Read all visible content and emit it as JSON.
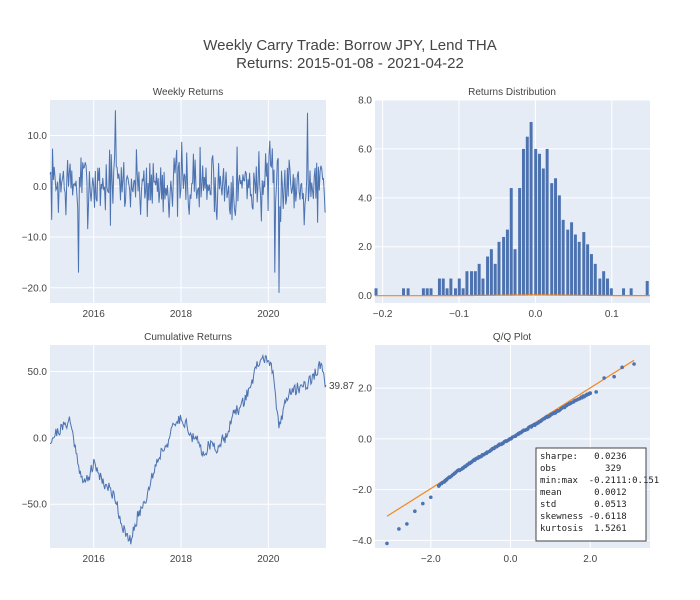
{
  "figure": {
    "title_line1": "Weekly Carry Trade: Borrow JPY, Lend THA",
    "title_line2": "Returns: 2015-01-08 - 2021-04-22",
    "colors": {
      "plot_bg": "#e5ecf6",
      "line": "#4c72b0",
      "bar": "#4c72b0",
      "fit": "#f58518",
      "grid": "#ffffff"
    }
  },
  "chart_data": [
    {
      "id": "weekly",
      "type": "line",
      "title": "Weekly Returns",
      "xlabel": "",
      "ylabel": "",
      "xlim": [
        2015.0,
        2021.32
      ],
      "ylim": [
        -23,
        17
      ],
      "xticks": [
        2016,
        2018,
        2020
      ],
      "xtick_labels": [
        "2016",
        "2018",
        "2020"
      ],
      "yticks": [
        10,
        0,
        -10,
        -20
      ],
      "ytick_labels": [
        "10.0",
        "0.0",
        "−10.0",
        "−20.0"
      ],
      "grid": true,
      "series_note": "329 weekly observations from 2015-01-08 to 2021-04-22; extremes: +15 (2016.5), +14.5 (2020.9), −17 (2015.65), −21 (2020.25)",
      "keypoints": [
        [
          2015.0,
          0
        ],
        [
          2015.65,
          -17
        ],
        [
          2016.5,
          15
        ],
        [
          2020.15,
          -17
        ],
        [
          2020.25,
          -21
        ],
        [
          2020.9,
          14.5
        ],
        [
          2021.3,
          0
        ]
      ]
    },
    {
      "id": "dist",
      "type": "bar",
      "title": "Returns Distribution",
      "xlabel": "",
      "ylabel": "",
      "xlim": [
        -0.21,
        0.15
      ],
      "ylim": [
        -0.3,
        8.0
      ],
      "xticks": [
        -0.2,
        -0.1,
        0,
        0.1
      ],
      "xtick_labels": [
        "−0.2",
        "−0.1",
        "0.0",
        "0.1"
      ],
      "yticks": [
        0,
        2,
        4,
        6,
        8
      ],
      "ytick_labels": [
        "0.0",
        "2.0",
        "4.0",
        "6.0",
        "8.0"
      ],
      "grid": true,
      "bin_width": 0.0052,
      "bins": [
        [
          -0.208,
          0.3
        ],
        [
          -0.172,
          0.3
        ],
        [
          -0.166,
          0.3
        ],
        [
          -0.146,
          0.3
        ],
        [
          -0.141,
          0.3
        ],
        [
          -0.136,
          0.3
        ],
        [
          -0.125,
          0.7
        ],
        [
          -0.12,
          0.7
        ],
        [
          -0.115,
          0.3
        ],
        [
          -0.11,
          0.7
        ],
        [
          -0.104,
          0.3
        ],
        [
          -0.099,
          0.7
        ],
        [
          -0.094,
          0.3
        ],
        [
          -0.089,
          1.0
        ],
        [
          -0.083,
          1.0
        ],
        [
          -0.078,
          1.0
        ],
        [
          -0.073,
          1.3
        ],
        [
          -0.068,
          0.7
        ],
        [
          -0.062,
          1.6
        ],
        [
          -0.057,
          1.9
        ],
        [
          -0.052,
          1.3
        ],
        [
          -0.047,
          2.2
        ],
        [
          -0.041,
          2.4
        ],
        [
          -0.036,
          2.7
        ],
        [
          -0.031,
          4.4
        ],
        [
          -0.026,
          1.9
        ],
        [
          -0.02,
          4.4
        ],
        [
          -0.015,
          6.0
        ],
        [
          -0.01,
          6.5
        ],
        [
          -0.005,
          7.1
        ],
        [
          0.001,
          6.0
        ],
        [
          0.006,
          5.8
        ],
        [
          0.011,
          5.2
        ],
        [
          0.016,
          6.0
        ],
        [
          0.022,
          4.6
        ],
        [
          0.027,
          4.8
        ],
        [
          0.032,
          4.1
        ],
        [
          0.037,
          3.1
        ],
        [
          0.043,
          2.7
        ],
        [
          0.048,
          3.0
        ],
        [
          0.053,
          2.5
        ],
        [
          0.058,
          2.2
        ],
        [
          0.064,
          2.6
        ],
        [
          0.069,
          2.1
        ],
        [
          0.074,
          1.7
        ],
        [
          0.079,
          1.3
        ],
        [
          0.085,
          0.7
        ],
        [
          0.09,
          1.0
        ],
        [
          0.095,
          0.7
        ],
        [
          0.1,
          0.3
        ],
        [
          0.116,
          0.3
        ],
        [
          0.126,
          0.3
        ],
        [
          0.147,
          0.6
        ]
      ],
      "fit_curve": {
        "mean": 0.0012,
        "std": 0.0513,
        "scale": 0.741
      }
    },
    {
      "id": "cum",
      "type": "line",
      "title": "Cumulative Returns",
      "xlabel": "",
      "ylabel": "",
      "xlim": [
        2015.0,
        2021.32
      ],
      "ylim": [
        -83,
        70
      ],
      "xticks": [
        2016,
        2018,
        2020
      ],
      "xtick_labels": [
        "2016",
        "2018",
        "2020"
      ],
      "yticks": [
        50,
        0,
        -50
      ],
      "ytick_labels": [
        "50.0",
        "0.0",
        "−50.0"
      ],
      "grid": true,
      "end_label": "39.87",
      "keypoints": [
        [
          2015.0,
          -2
        ],
        [
          2015.15,
          4
        ],
        [
          2015.3,
          8
        ],
        [
          2015.45,
          14
        ],
        [
          2015.55,
          -2
        ],
        [
          2015.75,
          -35
        ],
        [
          2015.9,
          -28
        ],
        [
          2016.0,
          -20
        ],
        [
          2016.1,
          -25
        ],
        [
          2016.25,
          -35
        ],
        [
          2016.35,
          -38
        ],
        [
          2016.5,
          -45
        ],
        [
          2016.6,
          -60
        ],
        [
          2016.75,
          -75
        ],
        [
          2016.85,
          -78
        ],
        [
          2017.0,
          -60
        ],
        [
          2017.2,
          -45
        ],
        [
          2017.4,
          -22
        ],
        [
          2017.55,
          -10
        ],
        [
          2017.7,
          -3
        ],
        [
          2017.85,
          10
        ],
        [
          2018.0,
          15
        ],
        [
          2018.1,
          12
        ],
        [
          2018.25,
          0
        ],
        [
          2018.4,
          -3
        ],
        [
          2018.5,
          -12
        ],
        [
          2018.65,
          -5
        ],
        [
          2018.8,
          -8
        ],
        [
          2019.0,
          0
        ],
        [
          2019.2,
          17
        ],
        [
          2019.4,
          25
        ],
        [
          2019.6,
          40
        ],
        [
          2019.75,
          55
        ],
        [
          2019.9,
          60
        ],
        [
          2020.0,
          60
        ],
        [
          2020.1,
          48
        ],
        [
          2020.2,
          20
        ],
        [
          2020.25,
          8
        ],
        [
          2020.4,
          30
        ],
        [
          2020.55,
          35
        ],
        [
          2020.7,
          38
        ],
        [
          2020.85,
          40
        ],
        [
          2021.0,
          45
        ],
        [
          2021.1,
          50
        ],
        [
          2021.2,
          55
        ],
        [
          2021.32,
          39.87
        ]
      ]
    },
    {
      "id": "qq",
      "type": "scatter",
      "title": "Q/Q Plot",
      "xlabel": "",
      "ylabel": "",
      "xlim": [
        -3.4,
        3.5
      ],
      "ylim": [
        -4.3,
        3.7
      ],
      "xticks": [
        -2,
        0,
        2
      ],
      "xtick_labels": [
        "−2.0",
        "0.0",
        "2.0"
      ],
      "yticks": [
        2,
        0,
        -2,
        -4
      ],
      "ytick_labels": [
        "2.0",
        "0.0",
        "−2.0",
        "−4.0"
      ],
      "grid": true,
      "reference_line": [
        [
          -3.1,
          -3.05
        ],
        [
          3.1,
          3.1
        ]
      ],
      "keypoints": [
        [
          -3.1,
          -4.12
        ],
        [
          -2.8,
          -3.55
        ],
        [
          -2.6,
          -3.35
        ],
        [
          -2.4,
          -2.85
        ],
        [
          -2.2,
          -2.55
        ],
        [
          -2.0,
          -2.3
        ],
        [
          -1.8,
          -1.85
        ],
        [
          -1.6,
          -1.6
        ],
        [
          -1.4,
          -1.35
        ],
        [
          -1.2,
          -1.15
        ],
        [
          -0.9,
          -0.82
        ],
        [
          -0.6,
          -0.55
        ],
        [
          -0.3,
          -0.25
        ],
        [
          0.0,
          0.0
        ],
        [
          0.3,
          0.3
        ],
        [
          0.6,
          0.55
        ],
        [
          0.9,
          0.85
        ],
        [
          1.2,
          1.1
        ],
        [
          1.5,
          1.4
        ],
        [
          1.8,
          1.65
        ],
        [
          2.0,
          1.8
        ],
        [
          2.15,
          1.85
        ],
        [
          2.35,
          2.4
        ],
        [
          2.6,
          2.45
        ],
        [
          2.8,
          2.82
        ],
        [
          3.1,
          2.95
        ]
      ],
      "stats_box": [
        "sharpe:   0.0236",
        "obs         329",
        "min:max  -0.2111:0.151",
        "mean      0.0012",
        "std       0.0513",
        "skewness -0.6118",
        "kurtosis  1.5261"
      ]
    }
  ]
}
